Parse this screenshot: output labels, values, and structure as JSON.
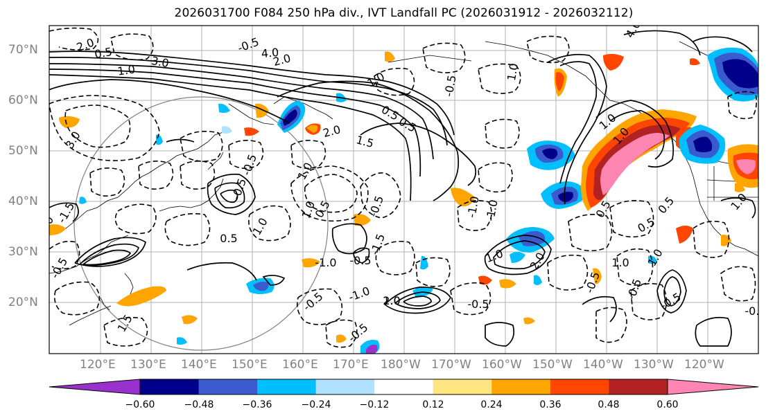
{
  "title": "2026031700 F084 250 hPa div., IVT Landfall PC (2026031912 - 2026032112)",
  "lat_labels": [
    "70°N",
    "60°N",
    "50°N",
    "40°N",
    "30°N",
    "20°N"
  ],
  "lon_labels": [
    "120°E",
    "130°E",
    "140°E",
    "150°E",
    "160°E",
    "170°E",
    "180°W",
    "170°W",
    "160°W",
    "150°W",
    "140°W",
    "130°W",
    "120°W"
  ],
  "colorbar": {
    "colors": [
      "#9932cc",
      "#00008b",
      "#3a5bcd",
      "#00bfff",
      "#b0e2ff",
      "#ffffff",
      "#ffe680",
      "#ffa500",
      "#ff4500",
      "#b22222",
      "#ff85b3"
    ],
    "ticks": [
      "−0.60",
      "−0.48",
      "−0.36",
      "−0.24",
      "−0.12",
      "0.12",
      "0.24",
      "0.36",
      "0.48",
      "0.60"
    ]
  },
  "contour_labels": [
    "1.0",
    "0.5",
    "3.0",
    "2.0",
    "4.0",
    "-0.5",
    "-1.0",
    "-1.5",
    "-0.5",
    "1.5",
    "3.0",
    "2.0",
    "1.0",
    "-0.5",
    "0.5",
    "1.0",
    "-0.5",
    "2.0",
    "1.5",
    "-0.5",
    "-1.0",
    "0.5",
    "-0.5",
    "-1.0",
    "1.0",
    "2.0",
    "1.0",
    "0.5",
    "-0.5",
    "1.0",
    "-1.0",
    "-1.5",
    "2.0",
    "-0.5",
    "1.0",
    "0.5",
    "1.0",
    "-1.0",
    "-0.5",
    "1.0",
    "1.0",
    "0.5",
    "-0.5",
    "4.0",
    "1.0",
    "-0.5",
    "-0.5",
    "1.0",
    "-0.5",
    "0.5",
    "1.0",
    "0.5",
    "-0.5"
  ]
}
